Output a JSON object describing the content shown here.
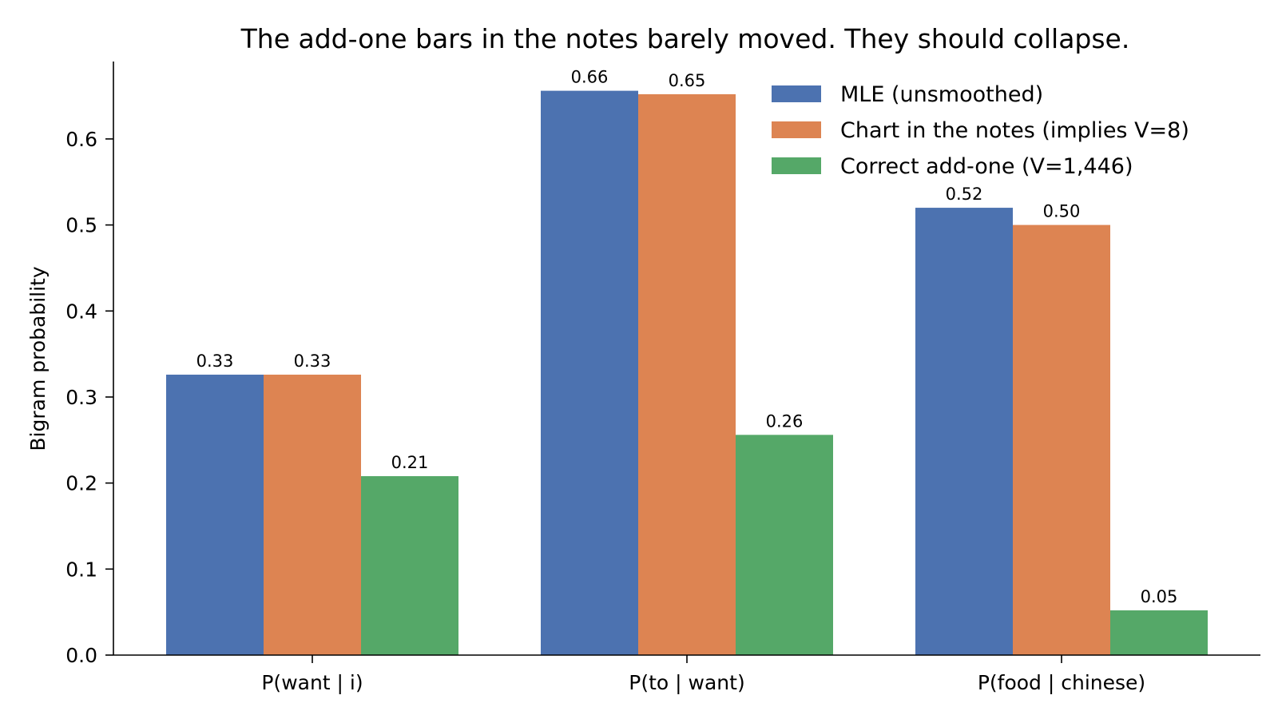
{
  "chart_data": {
    "type": "bar",
    "title": "The add-one bars in the notes barely moved. They should collapse.",
    "xlabel": "",
    "ylabel": "Bigram probability",
    "categories": [
      "P(want | i)",
      "P(to | want)",
      "P(food | chinese)"
    ],
    "ylim": [
      0,
      0.69
    ],
    "yticks": [
      0.0,
      0.1,
      0.2,
      0.3,
      0.4,
      0.5,
      0.6
    ],
    "ytick_labels": [
      "0.0",
      "0.1",
      "0.2",
      "0.3",
      "0.4",
      "0.5",
      "0.6"
    ],
    "grid": false,
    "legend_position": "top-right",
    "series": [
      {
        "name": "MLE (unsmoothed)",
        "color": "#4c72b0",
        "values": [
          0.326,
          0.656,
          0.52
        ],
        "labels": [
          "0.33",
          "0.66",
          "0.52"
        ]
      },
      {
        "name": "Chart in the notes (implies V=8)",
        "color": "#dd8452",
        "values": [
          0.326,
          0.652,
          0.5
        ],
        "labels": [
          "0.33",
          "0.65",
          "0.50"
        ]
      },
      {
        "name": "Correct add-one (V=1,446)",
        "color": "#55a868",
        "values": [
          0.208,
          0.256,
          0.052
        ],
        "labels": [
          "0.21",
          "0.26",
          "0.05"
        ]
      }
    ]
  }
}
